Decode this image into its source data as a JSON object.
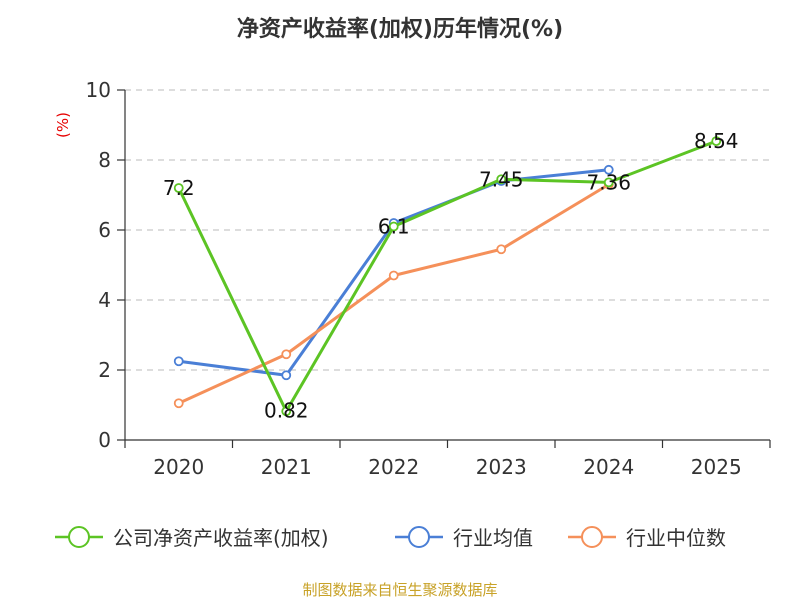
{
  "chart_data": {
    "type": "line",
    "title": "净资产收益率(加权)历年情况(%)",
    "ylabel": "(%)",
    "xlabel": "",
    "ylim": [
      0,
      10
    ],
    "yticks": [
      0,
      2,
      4,
      6,
      8,
      10
    ],
    "grid": true,
    "legend_position": "bottom",
    "categories": [
      "2020",
      "2021",
      "2022",
      "2023",
      "2024",
      "2025"
    ],
    "series": [
      {
        "name": "公司净资产收益率(加权)",
        "color": "#5cc424",
        "values": [
          7.2,
          0.82,
          6.1,
          7.45,
          7.36,
          8.54
        ],
        "labels": [
          "7.2",
          "0.82",
          "6.1",
          "7.45",
          "7.36",
          "8.54"
        ]
      },
      {
        "name": "行业均值",
        "color": "#4a7fd6",
        "values": [
          2.25,
          1.85,
          6.2,
          7.4,
          7.72,
          null
        ],
        "labels": null
      },
      {
        "name": "行业中位数",
        "color": "#f5905a",
        "values": [
          1.05,
          2.45,
          4.7,
          5.45,
          7.3,
          null
        ],
        "labels": null
      }
    ],
    "source": "制图数据来自恒生聚源数据库"
  }
}
